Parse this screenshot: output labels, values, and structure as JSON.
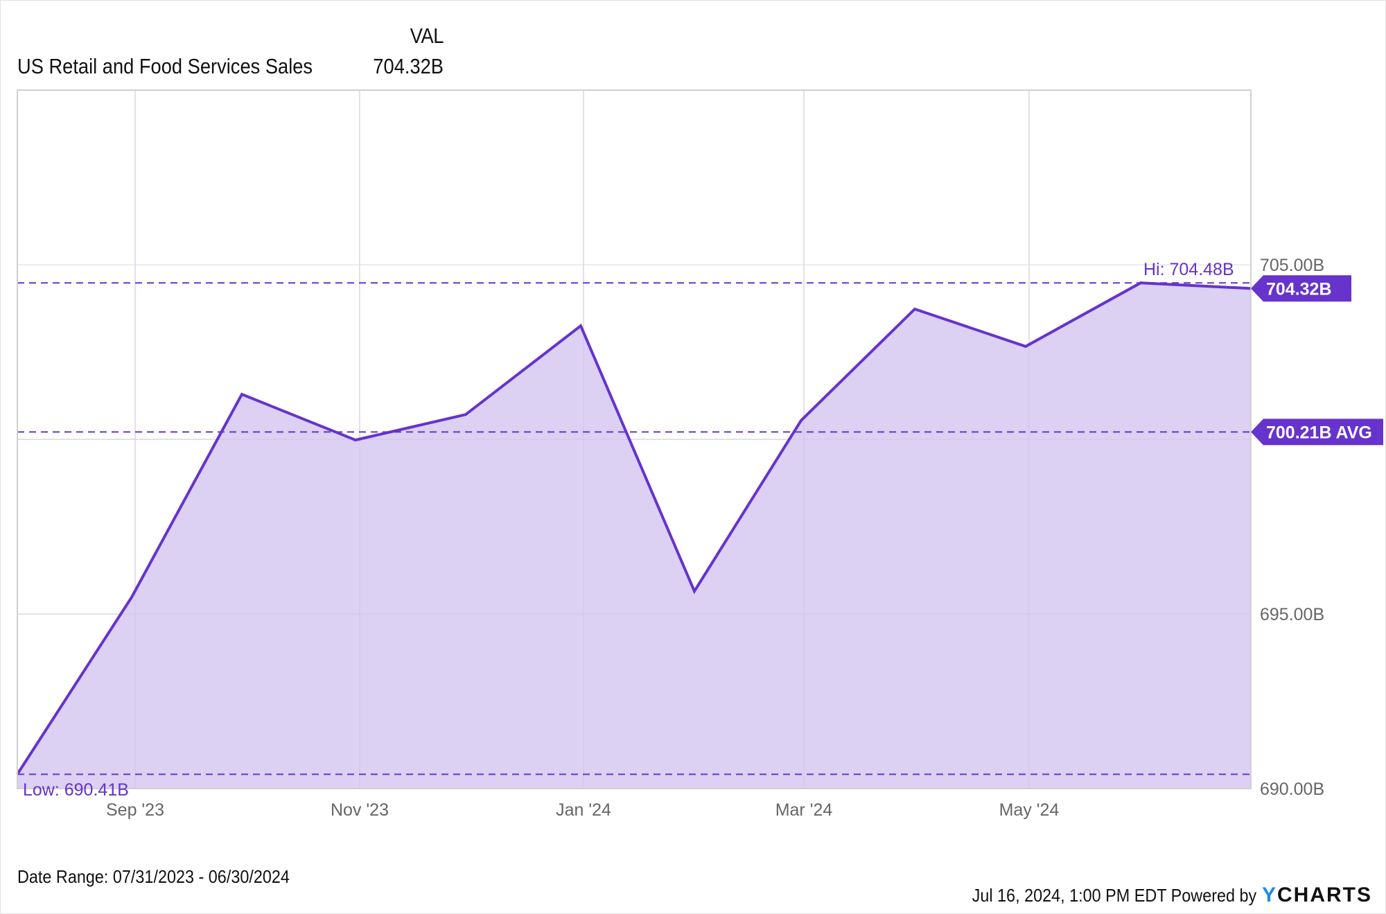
{
  "header": {
    "column_label": "VAL",
    "series_name": "US Retail and Food Services Sales",
    "series_value": "704.32B"
  },
  "colors": {
    "line": "#6633cc",
    "fill": "#dacdf2",
    "grid": "#e6e6e6",
    "axis_text": "#666666",
    "badge": "#6633cc",
    "logo_y": "#1a8ce6"
  },
  "annotations": {
    "hi_label": "Hi: 704.48B",
    "low_label": "Low: 690.41B",
    "last_badge": "704.32B",
    "avg_badge": "700.21B AVG"
  },
  "footer": {
    "date_range": "Date Range: 07/31/2023 - 06/30/2024",
    "timestamp": "Jul 16, 2024, 1:00 PM EDT",
    "powered_by": "Powered by",
    "logo_y": "Y",
    "logo_rest": "CHARTS"
  },
  "chart_data": {
    "type": "area",
    "title": "US Retail and Food Services Sales",
    "xlabel": "",
    "ylabel": "",
    "x": [
      "2023-07-31",
      "2023-08-31",
      "2023-09-30",
      "2023-10-31",
      "2023-11-30",
      "2023-12-31",
      "2024-01-31",
      "2024-02-29",
      "2024-03-31",
      "2024-04-30",
      "2024-05-31",
      "2024-06-30"
    ],
    "series": [
      {
        "name": "US Retail and Food Services Sales",
        "unit": "B",
        "values": [
          690.41,
          695.48,
          701.29,
          699.98,
          700.71,
          703.25,
          695.65,
          700.54,
          703.73,
          702.66,
          704.48,
          704.32
        ]
      }
    ],
    "x_tick_labels": [
      "Sep '23",
      "Nov '23",
      "Jan '24",
      "Mar '24",
      "May '24"
    ],
    "y_tick_labels": [
      "690.00B",
      "695.00B",
      "705.00B"
    ],
    "ylim": [
      690,
      710
    ],
    "reference_lines": {
      "high": 704.48,
      "low": 690.41,
      "average": 700.21,
      "last": 704.32
    },
    "grid": true,
    "legend": "none"
  }
}
